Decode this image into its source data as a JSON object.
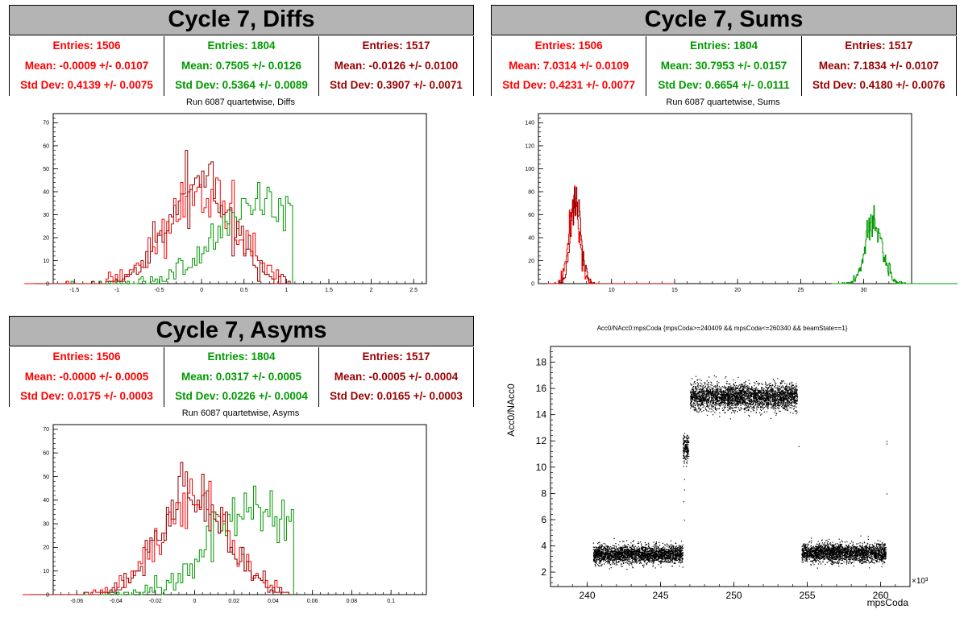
{
  "panels": {
    "diffs": {
      "title": "Cycle 7, Diffs",
      "subtitle": "Run 6087 quartetwise, Diffs",
      "stats": [
        {
          "entries": "Entries: 1506",
          "mean": "Mean: -0.0009 +/- 0.0107",
          "std": "Std Dev: 0.4139 +/- 0.0075",
          "color": "#ff0000"
        },
        {
          "entries": "Entries: 1804",
          "mean": "Mean: 0.7505 +/- 0.0126",
          "std": "Std Dev: 0.5364 +/- 0.0089",
          "color": "#009900"
        },
        {
          "entries": "Entries: 1517",
          "mean": "Mean: -0.0126 +/- 0.0100",
          "std": "Std Dev: 0.3907 +/- 0.0071",
          "color": "#990000"
        }
      ]
    },
    "sums": {
      "title": "Cycle 7, Sums",
      "subtitle": "Run 6087 quartetwise, Sums",
      "stats": [
        {
          "entries": "Entries: 1506",
          "mean": "Mean: 7.0314 +/- 0.0109",
          "std": "Std Dev: 0.4231 +/- 0.0077",
          "color": "#ff0000"
        },
        {
          "entries": "Entries: 1804",
          "mean": "Mean: 30.7953 +/- 0.0157",
          "std": "Std Dev: 0.6654 +/- 0.0111",
          "color": "#009900"
        },
        {
          "entries": "Entries: 1517",
          "mean": "Mean: 7.1834 +/- 0.0107",
          "std": "Std Dev: 0.4180 +/- 0.0076",
          "color": "#990000"
        }
      ]
    },
    "asyms": {
      "title": "Cycle 7, Asyms",
      "subtitle": "Run 6087 quartetwise, Asyms",
      "stats": [
        {
          "entries": "Entries: 1506",
          "mean": "Mean: -0.0000 +/- 0.0005",
          "std": "Std Dev: 0.0175 +/- 0.0003",
          "color": "#ff0000"
        },
        {
          "entries": "Entries: 1804",
          "mean": "Mean: 0.0317 +/- 0.0005",
          "std": "Std Dev: 0.0226 +/- 0.0004",
          "color": "#009900"
        },
        {
          "entries": "Entries: 1517",
          "mean": "Mean: -0.0005 +/- 0.0004",
          "std": "Std Dev: 0.0165 +/- 0.0003",
          "color": "#990000"
        }
      ]
    }
  },
  "chart_data": [
    {
      "id": "diffs",
      "type": "histogram",
      "xlim": [
        -1.75,
        2.65
      ],
      "ylim": [
        0,
        74
      ],
      "xticks": [
        "-1.5",
        "-1",
        "-0.5",
        "0",
        "0.5",
        "1",
        "1.5",
        "2",
        "2.5"
      ],
      "yticks": [
        "0",
        "10",
        "20",
        "30",
        "40",
        "50",
        "60",
        "70"
      ],
      "series": [
        {
          "color": "#ff0000",
          "entries": 1506,
          "mean": -0.0009,
          "std": 0.4139
        },
        {
          "color": "#009900",
          "entries": 1804,
          "mean": 0.7505,
          "std": 0.5364
        },
        {
          "color": "#990000",
          "entries": 1517,
          "mean": -0.0126,
          "std": 0.3907
        }
      ]
    },
    {
      "id": "sums",
      "type": "histogram",
      "xlim": [
        4.2,
        33.8
      ],
      "ylim": [
        0,
        148
      ],
      "xticks": [
        "10",
        "15",
        "20",
        "25",
        "30"
      ],
      "yticks": [
        "0",
        "20",
        "40",
        "60",
        "80",
        "100",
        "120",
        "140"
      ],
      "series": [
        {
          "color": "#ff0000",
          "entries": 1506,
          "mean": 7.0314,
          "std": 0.4231
        },
        {
          "color": "#009900",
          "entries": 1804,
          "mean": 30.7953,
          "std": 0.6654
        },
        {
          "color": "#990000",
          "entries": 1517,
          "mean": 7.1834,
          "std": 0.418
        }
      ]
    },
    {
      "id": "asyms",
      "type": "histogram",
      "xlim": [
        -0.072,
        0.118
      ],
      "ylim": [
        0,
        72
      ],
      "xticks": [
        "-0.06",
        "-0.04",
        "-0.02",
        "0",
        "0.02",
        "0.04",
        "0.06",
        "0.08",
        "0.1"
      ],
      "yticks": [
        "0",
        "10",
        "20",
        "30",
        "40",
        "50",
        "60",
        "70"
      ],
      "series": [
        {
          "color": "#ff0000",
          "entries": 1506,
          "mean": -0.0,
          "std": 0.0175
        },
        {
          "color": "#009900",
          "entries": 1804,
          "mean": 0.0317,
          "std": 0.0226
        },
        {
          "color": "#990000",
          "entries": 1517,
          "mean": -0.0005,
          "std": 0.0165
        }
      ]
    },
    {
      "id": "scatter",
      "type": "scatter",
      "title": "Acc0/NAcc0:mpsCoda {mpsCoda>=240409 && mpsCoda<=260340 && beamState==1}",
      "xlabel": "mpsCoda",
      "ylabel": "Acc0/NAcc0",
      "xexponent": "×10³",
      "xlim": [
        237.5,
        262.0
      ],
      "ylim": [
        0.9,
        19.2
      ],
      "xticks": [
        "240",
        "245",
        "250",
        "255",
        "260"
      ],
      "yticks": [
        "2",
        "4",
        "6",
        "8",
        "10",
        "12",
        "14",
        "16",
        "18"
      ],
      "clusters": [
        {
          "x": [
            240.4,
            246.5
          ],
          "y_center": 3.4,
          "y_spread": 0.35
        },
        {
          "x": [
            246.5,
            246.9
          ],
          "y_center": 11.5,
          "y_spread": 0.5
        },
        {
          "x": [
            247.0,
            254.3
          ],
          "y_center": 15.4,
          "y_spread": 0.5
        },
        {
          "x": [
            254.6,
            260.34
          ],
          "y_center": 3.5,
          "y_spread": 0.35
        }
      ]
    }
  ]
}
